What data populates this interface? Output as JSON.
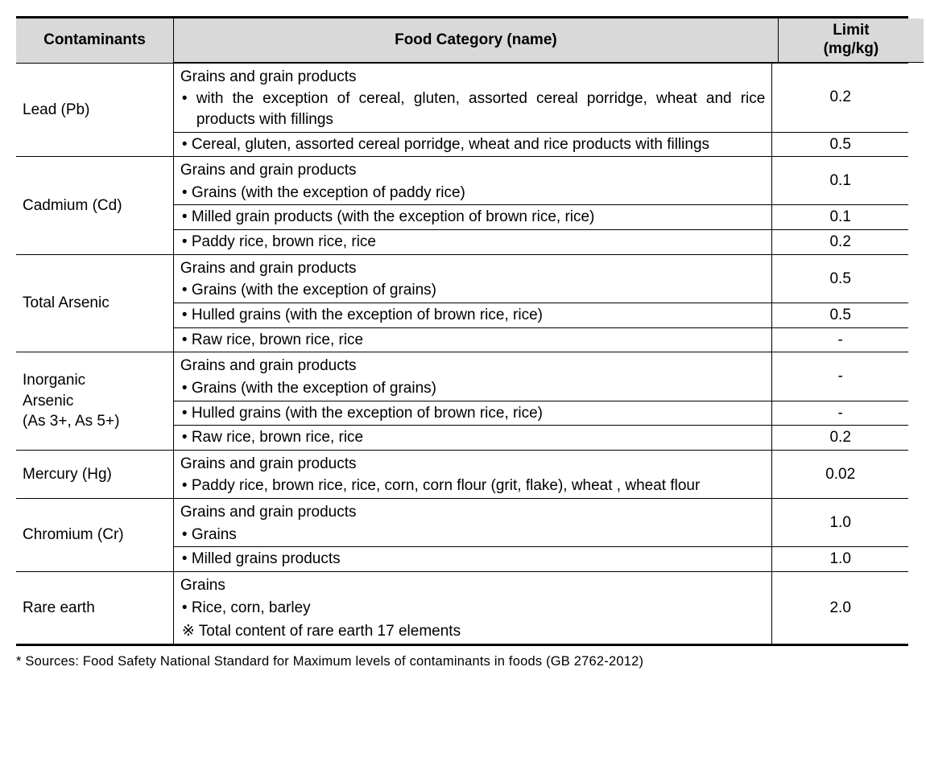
{
  "header": {
    "contaminants": "Contaminants",
    "category": "Food Category (name)",
    "limit_l1": "Limit",
    "limit_l2": "(mg/kg)"
  },
  "groups": [
    {
      "name": "Lead (Pb)",
      "heading": "Grains and grain products",
      "subs": [
        {
          "text": "• with the exception of cereal, gluten, assorted cereal porridge, wheat and rice products with fillings",
          "limit": "0.2",
          "justify": true
        },
        {
          "text": "• Cereal, gluten, assorted cereal porridge, wheat and rice products with fillings",
          "limit": "0.5",
          "justify": true
        }
      ]
    },
    {
      "name": "Cadmium (Cd)",
      "heading": "Grains and grain products",
      "subs": [
        {
          "text": "• Grains (with the exception of paddy rice)",
          "limit": "0.1"
        },
        {
          "text": "• Milled grain products (with the exception of brown rice, rice)",
          "limit": "0.1",
          "justify": true
        },
        {
          "text": "• Paddy rice, brown rice, rice",
          "limit": "0.2"
        }
      ]
    },
    {
      "name": "Total Arsenic",
      "heading": "Grains and grain products",
      "subs": [
        {
          "text": "• Grains (with the exception of grains)",
          "limit": "0.5"
        },
        {
          "text": "• Hulled grains (with the exception of brown rice, rice)",
          "limit": "0.5"
        },
        {
          "text": "• Raw rice, brown rice, rice",
          "limit": "-"
        }
      ]
    },
    {
      "name": "Inorganic\nArsenic\n(As 3+, As 5+)",
      "heading": "Grains and grain products",
      "subs": [
        {
          "text": "• Grains (with the exception of grains)",
          "limit": "-"
        },
        {
          "text": "• Hulled grains (with the exception of brown rice, rice)",
          "limit": "-"
        },
        {
          "text": "• Raw rice, brown rice, rice",
          "limit": "0.2"
        }
      ]
    },
    {
      "name": "Mercury (Hg)",
      "heading": "Grains and grain products",
      "subs": [
        {
          "text": "• Paddy rice, brown rice, rice, corn, corn flour (grit, flake), wheat , wheat flour",
          "limit": "0.02",
          "justify": true,
          "merge_with_heading": true
        }
      ]
    },
    {
      "name": "Chromium (Cr)",
      "heading": "Grains and grain products",
      "subs": [
        {
          "text": "• Grains",
          "limit": "1.0"
        },
        {
          "text": "• Milled grains products",
          "limit": "1.0"
        }
      ]
    },
    {
      "name": "Rare earth",
      "heading": "Grains",
      "subs": [
        {
          "text": "• Rice, corn, barley",
          "limit": "2.0",
          "merge_with_heading": true,
          "note": "※ Total content of rare earth 17 elements"
        }
      ],
      "last": true
    }
  ],
  "footnote": "* Sources: Food Safety National Standard for Maximum levels of contaminants in foods (GB 2762-2012)",
  "colors": {
    "header_bg": "#d9d9d9",
    "border": "#000000",
    "background": "#ffffff",
    "text": "#000000"
  }
}
